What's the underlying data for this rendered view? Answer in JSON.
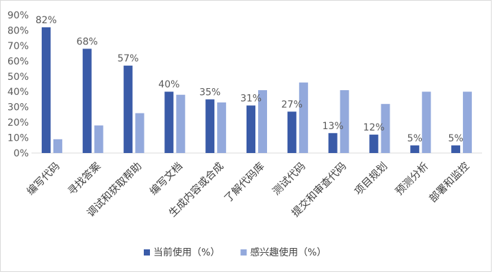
{
  "chart_data": {
    "type": "bar",
    "title": "",
    "xlabel": "",
    "ylabel": "",
    "categories": [
      "编写代码",
      "寻找答案",
      "调试和获取帮助",
      "编写文档",
      "生成内容或合成",
      "了解代码库",
      "测试代码",
      "提交和审查代码",
      "项目规划",
      "预测分析",
      "部署和监控"
    ],
    "series": [
      {
        "name": "当前使用（%）",
        "color": "#3a5ba8",
        "values": [
          82,
          68,
          57,
          40,
          35,
          31,
          27,
          13,
          12,
          5,
          5
        ],
        "data_labels": true
      },
      {
        "name": "感兴趣使用（%）",
        "color": "#93a9dc",
        "values": [
          9,
          18,
          26,
          38,
          33,
          41,
          46,
          41,
          32,
          40,
          40
        ],
        "data_labels": false
      }
    ],
    "ylim": [
      0,
      90
    ],
    "ytick_step": 10,
    "ytick_format": "percent",
    "grid": false,
    "legend": "bottom-center"
  }
}
